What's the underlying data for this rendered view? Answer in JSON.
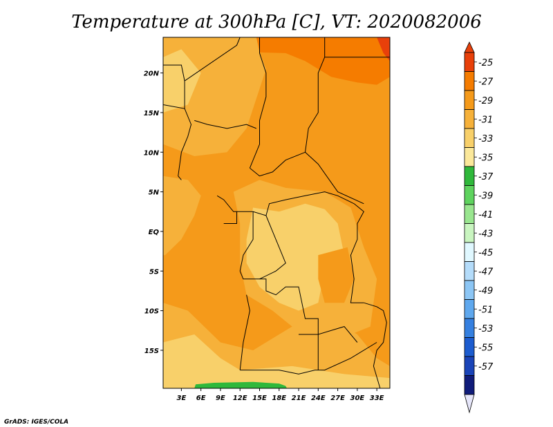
{
  "chart_data": {
    "type": "heatmap",
    "title": "Temperature at 300hPa [C], VT: 2020082006",
    "credit": "GrADS: IGES/COLA",
    "x_ticks": [
      "3E",
      "6E",
      "9E",
      "12E",
      "15E",
      "18E",
      "21E",
      "24E",
      "27E",
      "30E",
      "33E"
    ],
    "x_tick_values": [
      3,
      6,
      9,
      12,
      15,
      18,
      21,
      24,
      27,
      30,
      33
    ],
    "y_ticks": [
      "20N",
      "15N",
      "10N",
      "5N",
      "EQ",
      "5S",
      "10S",
      "15S"
    ],
    "y_tick_values": [
      20,
      15,
      10,
      5,
      0,
      -5,
      -10,
      -15
    ],
    "xlim": [
      0.2,
      35
    ],
    "ylim": [
      -19.8,
      24.5
    ],
    "colorbar": {
      "labels": [
        "-25",
        "-27",
        "-29",
        "-31",
        "-33",
        "-35",
        "-37",
        "-39",
        "-41",
        "-43",
        "-45",
        "-47",
        "-49",
        "-51",
        "-53",
        "-55",
        "-57"
      ],
      "colors": [
        "#e8400a",
        "#f57c00",
        "#f59a1a",
        "#f6b13a",
        "#f8d06a",
        "#fbe89a",
        "#2fb83b",
        "#5ed35e",
        "#99e68f",
        "#c9f5c0",
        "#e0f8ff",
        "#b4dcfa",
        "#8cc6f5",
        "#5fa8ee",
        "#3580e0",
        "#1c5ccf",
        "#1a44b8",
        "#101c7a"
      ],
      "top_triangle_color": "#e8400a",
      "bottom_triangle_color": "#e6e6fa"
    },
    "regions": [
      {
        "level": "-29",
        "polygon": [
          [
            0.2,
            24.5
          ],
          [
            35,
            24.5
          ],
          [
            35,
            -19.8
          ],
          [
            0.2,
            -19.8
          ]
        ]
      },
      {
        "level": "-27",
        "polygon": [
          [
            14.5,
            24.5
          ],
          [
            35,
            24.5
          ],
          [
            35,
            19.5
          ],
          [
            33,
            18.5
          ],
          [
            30,
            18.8
          ],
          [
            26,
            19.5
          ],
          [
            22,
            21.5
          ],
          [
            19,
            22.5
          ],
          [
            15,
            22.6
          ]
        ]
      },
      {
        "level": "-25",
        "polygon": [
          [
            33,
            24.5
          ],
          [
            35,
            24.5
          ],
          [
            35,
            21.5
          ],
          [
            34,
            22.5
          ]
        ]
      },
      {
        "level": "-31",
        "polygon": [
          [
            0.2,
            24.5
          ],
          [
            14.5,
            24.5
          ],
          [
            15,
            22.6
          ],
          [
            16,
            20.5
          ],
          [
            15,
            18
          ],
          [
            13,
            13
          ],
          [
            10,
            10
          ],
          [
            5,
            9.5
          ],
          [
            0.2,
            11
          ]
        ]
      },
      {
        "level": "-31",
        "polygon": [
          [
            0.2,
            7
          ],
          [
            4,
            6.5
          ],
          [
            6,
            4.5
          ],
          [
            5,
            2
          ],
          [
            3,
            -1
          ],
          [
            0.5,
            -3
          ],
          [
            0.2,
            -3
          ]
        ]
      },
      {
        "level": "-33",
        "polygon": [
          [
            0.2,
            15
          ],
          [
            4,
            16
          ],
          [
            6,
            20
          ],
          [
            3,
            23
          ],
          [
            0.2,
            22
          ]
        ]
      },
      {
        "level": "-31",
        "polygon": [
          [
            11,
            5
          ],
          [
            15,
            6.5
          ],
          [
            19,
            5.5
          ],
          [
            25,
            5
          ],
          [
            29,
            3
          ],
          [
            31,
            -2
          ],
          [
            33,
            -6
          ],
          [
            32,
            -12
          ],
          [
            29,
            -13
          ],
          [
            26,
            -14
          ],
          [
            20,
            -12
          ],
          [
            17,
            -10
          ],
          [
            13,
            -8
          ],
          [
            12,
            -4
          ],
          [
            12,
            1
          ]
        ]
      },
      {
        "level": "-33",
        "polygon": [
          [
            14,
            3
          ],
          [
            18,
            2.5
          ],
          [
            22,
            3.5
          ],
          [
            25,
            2.8
          ],
          [
            27,
            1
          ],
          [
            28,
            -3
          ],
          [
            25,
            -5
          ],
          [
            24,
            -9
          ],
          [
            21,
            -10
          ],
          [
            18,
            -9
          ],
          [
            15,
            -7
          ],
          [
            13,
            -4
          ],
          [
            13,
            -1
          ]
        ]
      },
      {
        "level": "-29",
        "polygon": [
          [
            24,
            -3
          ],
          [
            28.5,
            -2
          ],
          [
            29.5,
            -6
          ],
          [
            28,
            -9
          ],
          [
            25,
            -9
          ],
          [
            24,
            -6
          ]
        ]
      },
      {
        "level": "-31",
        "polygon": [
          [
            0.2,
            -9
          ],
          [
            4,
            -10
          ],
          [
            9,
            -14
          ],
          [
            14,
            -15
          ],
          [
            18,
            -13
          ],
          [
            22,
            -11
          ],
          [
            26,
            -11
          ],
          [
            30,
            -13
          ],
          [
            33,
            -16
          ],
          [
            35,
            -17
          ],
          [
            35,
            -19.8
          ],
          [
            0.2,
            -19.8
          ]
        ]
      },
      {
        "level": "-33",
        "polygon": [
          [
            0.2,
            -14
          ],
          [
            5,
            -13
          ],
          [
            9,
            -16
          ],
          [
            12,
            -17.5
          ],
          [
            20,
            -17
          ],
          [
            28,
            -18
          ],
          [
            35,
            -18.5
          ],
          [
            35,
            -19.8
          ],
          [
            0.2,
            -19.8
          ]
        ]
      },
      {
        "level": "-37",
        "polygon": [
          [
            5,
            -19.8
          ],
          [
            5.2,
            -19.3
          ],
          [
            8,
            -19.1
          ],
          [
            14,
            -19.0
          ],
          [
            18,
            -19.2
          ],
          [
            19,
            -19.5
          ],
          [
            19.2,
            -19.8
          ]
        ]
      }
    ],
    "borders": [
      [
        [
          0.2,
          21
        ],
        [
          3,
          21
        ],
        [
          3.5,
          19
        ],
        [
          3.5,
          15.5
        ],
        [
          0.2,
          16
        ]
      ],
      [
        [
          3.5,
          19
        ],
        [
          11.5,
          23.5
        ],
        [
          12,
          24.5
        ]
      ],
      [
        [
          15,
          24.5
        ],
        [
          15,
          22.5
        ],
        [
          16,
          20
        ],
        [
          16,
          17
        ],
        [
          15,
          14
        ],
        [
          15,
          11
        ],
        [
          14,
          9
        ],
        [
          13.5,
          8
        ]
      ],
      [
        [
          25,
          24.5
        ],
        [
          25,
          22
        ],
        [
          24,
          20
        ],
        [
          24,
          15
        ],
        [
          22.5,
          13
        ],
        [
          22,
          10
        ],
        [
          24,
          8.5
        ],
        [
          27,
          5
        ],
        [
          31,
          3.5
        ]
      ],
      [
        [
          25,
          22
        ],
        [
          35,
          22
        ]
      ],
      [
        [
          3.5,
          15.5
        ],
        [
          4.5,
          13.5
        ],
        [
          4,
          12
        ],
        [
          3,
          10
        ],
        [
          2.5,
          7
        ],
        [
          3,
          6.5
        ]
      ],
      [
        [
          5,
          14
        ],
        [
          7,
          13.5
        ],
        [
          10,
          13
        ],
        [
          13,
          13.5
        ],
        [
          14.5,
          13
        ]
      ],
      [
        [
          13.5,
          8
        ],
        [
          15,
          7
        ],
        [
          17,
          7.5
        ],
        [
          19,
          9
        ],
        [
          22,
          10
        ]
      ],
      [
        [
          8.5,
          4.5
        ],
        [
          9.5,
          4
        ],
        [
          11,
          2.5
        ],
        [
          14,
          2.5
        ],
        [
          16,
          2
        ],
        [
          16.5,
          3.5
        ],
        [
          19,
          4
        ],
        [
          22,
          4.5
        ],
        [
          25,
          5
        ],
        [
          27,
          4.5
        ],
        [
          29.5,
          3.5
        ]
      ],
      [
        [
          11.5,
          2.5
        ],
        [
          11.5,
          1
        ],
        [
          9.5,
          1
        ]
      ],
      [
        [
          14,
          2.5
        ],
        [
          14,
          -1
        ],
        [
          12.5,
          -3
        ],
        [
          12,
          -5
        ]
      ],
      [
        [
          16,
          2
        ],
        [
          17,
          0
        ],
        [
          18,
          -2
        ],
        [
          19,
          -4
        ],
        [
          17.5,
          -5
        ],
        [
          15,
          -6
        ]
      ],
      [
        [
          29.5,
          3.5
        ],
        [
          31,
          2.5
        ],
        [
          30,
          1
        ],
        [
          30,
          -1
        ],
        [
          29,
          -3
        ],
        [
          29.5,
          -6
        ],
        [
          29,
          -9
        ],
        [
          31,
          -9
        ]
      ],
      [
        [
          12,
          -5
        ],
        [
          12.5,
          -6
        ],
        [
          16,
          -6
        ],
        [
          16,
          -7.5
        ],
        [
          17.5,
          -8
        ],
        [
          19,
          -7
        ],
        [
          21,
          -7
        ],
        [
          22,
          -11
        ],
        [
          24,
          -11
        ],
        [
          24,
          -13
        ],
        [
          28,
          -12
        ],
        [
          29,
          -13
        ],
        [
          30,
          -14
        ]
      ],
      [
        [
          13,
          -8
        ],
        [
          13.5,
          -10
        ],
        [
          12.5,
          -14
        ],
        [
          12,
          -17.5
        ]
      ],
      [
        [
          12,
          -17.5
        ],
        [
          13.5,
          -17.5
        ],
        [
          18,
          -17.5
        ],
        [
          21,
          -18
        ],
        [
          23.5,
          -17.5
        ],
        [
          25,
          -17.5
        ],
        [
          29,
          -16
        ],
        [
          33,
          -14
        ]
      ],
      [
        [
          21,
          -13
        ],
        [
          22,
          -13
        ],
        [
          24,
          -13
        ],
        [
          24,
          -17.5
        ]
      ],
      [
        [
          31,
          -9
        ],
        [
          33,
          -9.5
        ],
        [
          34,
          -10
        ],
        [
          34.5,
          -11.5
        ],
        [
          34,
          -14
        ],
        [
          33,
          -15
        ],
        [
          32.5,
          -17
        ],
        [
          33.5,
          -19.8
        ]
      ]
    ]
  }
}
